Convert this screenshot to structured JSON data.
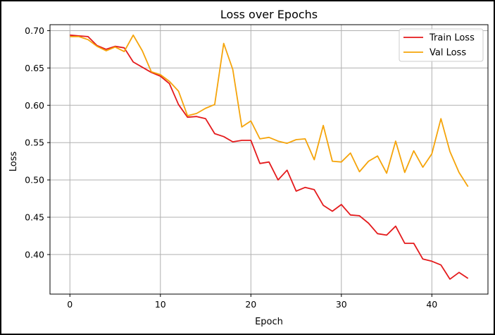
{
  "chart_data": {
    "type": "line",
    "title": "Loss over Epochs",
    "xlabel": "Epoch",
    "ylabel": "Loss",
    "xlim": [
      -2.2,
      46.2
    ],
    "ylim": [
      0.347,
      0.708
    ],
    "xticks": [
      0,
      10,
      20,
      30,
      40
    ],
    "yticks": [
      0.4,
      0.45,
      0.5,
      0.55,
      0.6,
      0.65,
      0.7
    ],
    "grid": true,
    "legend_position": "top-right",
    "x": [
      0,
      1,
      2,
      3,
      4,
      5,
      6,
      7,
      8,
      9,
      10,
      11,
      12,
      13,
      14,
      15,
      16,
      17,
      18,
      19,
      20,
      21,
      22,
      23,
      24,
      25,
      26,
      27,
      28,
      29,
      30,
      31,
      32,
      33,
      34,
      35,
      36,
      37,
      38,
      39,
      40,
      41,
      42,
      43,
      44
    ],
    "series": [
      {
        "name": "Train Loss",
        "color": "#e41a1c",
        "values": [
          0.694,
          0.693,
          0.692,
          0.68,
          0.675,
          0.679,
          0.677,
          0.658,
          0.651,
          0.644,
          0.639,
          0.629,
          0.601,
          0.584,
          0.585,
          0.582,
          0.562,
          0.558,
          0.551,
          0.553,
          0.553,
          0.522,
          0.524,
          0.5,
          0.513,
          0.485,
          0.49,
          0.487,
          0.466,
          0.458,
          0.467,
          0.453,
          0.452,
          0.442,
          0.428,
          0.426,
          0.438,
          0.415,
          0.415,
          0.394,
          0.391,
          0.386,
          0.367,
          0.376,
          0.368
        ]
      },
      {
        "name": "Val Loss",
        "color": "#f5a40a",
        "values": [
          0.692,
          0.692,
          0.688,
          0.679,
          0.673,
          0.678,
          0.672,
          0.694,
          0.673,
          0.645,
          0.641,
          0.632,
          0.619,
          0.586,
          0.589,
          0.596,
          0.601,
          0.683,
          0.648,
          0.571,
          0.579,
          0.555,
          0.557,
          0.552,
          0.549,
          0.554,
          0.555,
          0.527,
          0.573,
          0.525,
          0.524,
          0.536,
          0.511,
          0.525,
          0.532,
          0.509,
          0.552,
          0.51,
          0.539,
          0.517,
          0.535,
          0.582,
          0.538,
          0.51,
          0.491
        ]
      }
    ]
  }
}
